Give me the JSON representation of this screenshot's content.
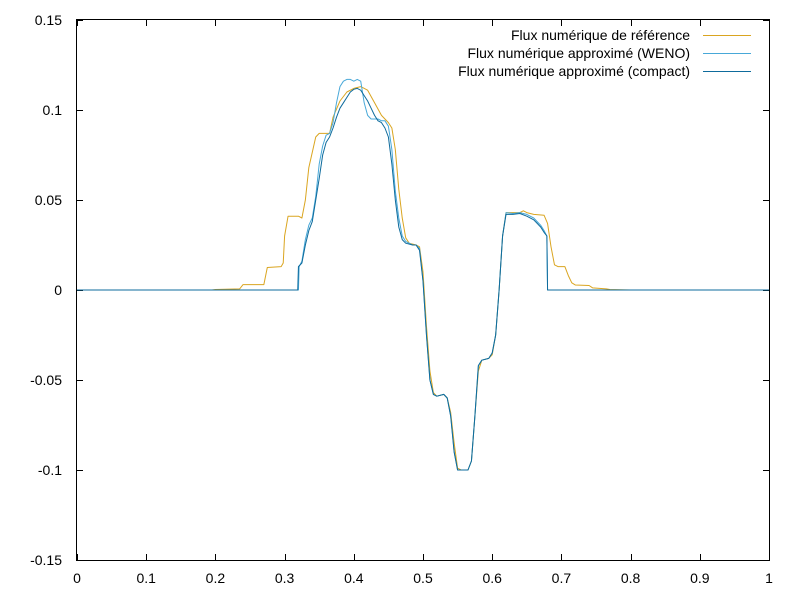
{
  "chart_data": {
    "type": "line",
    "title": "",
    "xlabel": "",
    "ylabel": "",
    "xlim": [
      0,
      1
    ],
    "ylim": [
      -0.15,
      0.15
    ],
    "x_ticks": [
      0,
      0.1,
      0.2,
      0.3,
      0.4,
      0.5,
      0.6,
      0.7,
      0.8,
      0.9,
      1
    ],
    "x_tick_labels": [
      "0",
      "0.1",
      "0.2",
      "0.3",
      "0.4",
      "0.5",
      "0.6",
      "0.7",
      "0.8",
      "0.9",
      "1"
    ],
    "y_ticks": [
      -0.15,
      -0.1,
      -0.05,
      0,
      0.05,
      0.1,
      0.15
    ],
    "y_tick_labels": [
      "-0.15",
      "-0.1",
      "-0.05",
      "0",
      "0.05",
      "0.1",
      "0.15"
    ],
    "grid": false,
    "legend_position": "top-right",
    "series": [
      {
        "name": "Flux numérique de référence",
        "color": "#daa520",
        "points": [
          [
            0,
            0
          ],
          [
            0.195,
            0
          ],
          [
            0.2,
            0.0003
          ],
          [
            0.235,
            0.0006
          ],
          [
            0.24,
            0.003
          ],
          [
            0.27,
            0.003
          ],
          [
            0.275,
            0.0125
          ],
          [
            0.295,
            0.013
          ],
          [
            0.298,
            0.015
          ],
          [
            0.3,
            0.03
          ],
          [
            0.305,
            0.041
          ],
          [
            0.32,
            0.041
          ],
          [
            0.325,
            0.04
          ],
          [
            0.33,
            0.05
          ],
          [
            0.335,
            0.068
          ],
          [
            0.345,
            0.085
          ],
          [
            0.35,
            0.087
          ],
          [
            0.365,
            0.087
          ],
          [
            0.37,
            0.096
          ],
          [
            0.38,
            0.105
          ],
          [
            0.39,
            0.11
          ],
          [
            0.4,
            0.112
          ],
          [
            0.41,
            0.113
          ],
          [
            0.42,
            0.111
          ],
          [
            0.43,
            0.104
          ],
          [
            0.44,
            0.097
          ],
          [
            0.45,
            0.093
          ],
          [
            0.455,
            0.09
          ],
          [
            0.46,
            0.078
          ],
          [
            0.465,
            0.056
          ],
          [
            0.47,
            0.04
          ],
          [
            0.475,
            0.029
          ],
          [
            0.48,
            0.026
          ],
          [
            0.49,
            0.025
          ],
          [
            0.495,
            0.024
          ],
          [
            0.5,
            0.01
          ],
          [
            0.505,
            -0.02
          ],
          [
            0.51,
            -0.045
          ],
          [
            0.515,
            -0.057
          ],
          [
            0.52,
            -0.059
          ],
          [
            0.53,
            -0.058
          ],
          [
            0.535,
            -0.06
          ],
          [
            0.54,
            -0.068
          ],
          [
            0.545,
            -0.085
          ],
          [
            0.55,
            -0.099
          ],
          [
            0.555,
            -0.1
          ],
          [
            0.565,
            -0.1
          ],
          [
            0.57,
            -0.095
          ],
          [
            0.575,
            -0.07
          ],
          [
            0.58,
            -0.045
          ],
          [
            0.585,
            -0.039
          ],
          [
            0.595,
            -0.038
          ],
          [
            0.6,
            -0.036
          ],
          [
            0.605,
            -0.025
          ],
          [
            0.61,
            0
          ],
          [
            0.615,
            0.03
          ],
          [
            0.62,
            0.043
          ],
          [
            0.64,
            0.043
          ],
          [
            0.645,
            0.044
          ],
          [
            0.65,
            0.043
          ],
          [
            0.66,
            0.042
          ],
          [
            0.675,
            0.0415
          ],
          [
            0.68,
            0.037
          ],
          [
            0.685,
            0.024
          ],
          [
            0.69,
            0.014
          ],
          [
            0.695,
            0.013
          ],
          [
            0.705,
            0.013
          ],
          [
            0.71,
            0.008
          ],
          [
            0.715,
            0.004
          ],
          [
            0.72,
            0.0028
          ],
          [
            0.74,
            0.0025
          ],
          [
            0.745,
            0.0012
          ],
          [
            0.765,
            0.0006
          ],
          [
            0.77,
            0.0003
          ],
          [
            0.8,
            0
          ],
          [
            1,
            0
          ]
        ]
      },
      {
        "name": "Flux numérique approximé (WENO)",
        "color": "#48a8d8",
        "points": [
          [
            0,
            0
          ],
          [
            0.315,
            0
          ],
          [
            0.32,
            0
          ],
          [
            0.321,
            0.013
          ],
          [
            0.325,
            0.016
          ],
          [
            0.33,
            0.028
          ],
          [
            0.335,
            0.036
          ],
          [
            0.34,
            0.04
          ],
          [
            0.345,
            0.052
          ],
          [
            0.35,
            0.07
          ],
          [
            0.355,
            0.08
          ],
          [
            0.36,
            0.086
          ],
          [
            0.365,
            0.087
          ],
          [
            0.37,
            0.093
          ],
          [
            0.375,
            0.104
          ],
          [
            0.38,
            0.113
          ],
          [
            0.385,
            0.116
          ],
          [
            0.39,
            0.117
          ],
          [
            0.395,
            0.117
          ],
          [
            0.4,
            0.116
          ],
          [
            0.405,
            0.117
          ],
          [
            0.41,
            0.116
          ],
          [
            0.415,
            0.104
          ],
          [
            0.42,
            0.097
          ],
          [
            0.425,
            0.095
          ],
          [
            0.435,
            0.095
          ],
          [
            0.44,
            0.094
          ],
          [
            0.445,
            0.094
          ],
          [
            0.45,
            0.091
          ],
          [
            0.455,
            0.078
          ],
          [
            0.46,
            0.055
          ],
          [
            0.465,
            0.04
          ],
          [
            0.47,
            0.03
          ],
          [
            0.475,
            0.027
          ],
          [
            0.485,
            0.025
          ],
          [
            0.49,
            0.025
          ],
          [
            0.495,
            0.023
          ],
          [
            0.5,
            0.005
          ],
          [
            0.505,
            -0.025
          ],
          [
            0.51,
            -0.05
          ],
          [
            0.515,
            -0.058
          ],
          [
            0.52,
            -0.059
          ],
          [
            0.53,
            -0.058
          ],
          [
            0.535,
            -0.06
          ],
          [
            0.54,
            -0.07
          ],
          [
            0.545,
            -0.09
          ],
          [
            0.55,
            -0.1
          ],
          [
            0.56,
            -0.1
          ],
          [
            0.565,
            -0.1
          ],
          [
            0.57,
            -0.095
          ],
          [
            0.575,
            -0.07
          ],
          [
            0.58,
            -0.042
          ],
          [
            0.585,
            -0.039
          ],
          [
            0.595,
            -0.038
          ],
          [
            0.6,
            -0.035
          ],
          [
            0.605,
            -0.025
          ],
          [
            0.61,
            0
          ],
          [
            0.615,
            0.03
          ],
          [
            0.62,
            0.043
          ],
          [
            0.63,
            0.0425
          ],
          [
            0.64,
            0.043
          ],
          [
            0.65,
            0.042
          ],
          [
            0.66,
            0.04
          ],
          [
            0.665,
            0.038
          ],
          [
            0.67,
            0.036
          ],
          [
            0.675,
            0.033
          ],
          [
            0.679,
            0.03
          ],
          [
            0.68,
            0
          ],
          [
            1,
            0
          ]
        ]
      },
      {
        "name": "Flux numérique approximé (compact)",
        "color": "#0e6b9c",
        "points": [
          [
            0,
            0
          ],
          [
            0.318,
            0
          ],
          [
            0.319,
            0
          ],
          [
            0.32,
            0.013
          ],
          [
            0.325,
            0.015
          ],
          [
            0.33,
            0.025
          ],
          [
            0.335,
            0.033
          ],
          [
            0.34,
            0.038
          ],
          [
            0.345,
            0.05
          ],
          [
            0.35,
            0.062
          ],
          [
            0.355,
            0.075
          ],
          [
            0.36,
            0.082
          ],
          [
            0.365,
            0.085
          ],
          [
            0.37,
            0.09
          ],
          [
            0.375,
            0.096
          ],
          [
            0.38,
            0.101
          ],
          [
            0.385,
            0.104
          ],
          [
            0.39,
            0.107
          ],
          [
            0.395,
            0.11
          ],
          [
            0.4,
            0.1115
          ],
          [
            0.405,
            0.112
          ],
          [
            0.41,
            0.111
          ],
          [
            0.415,
            0.108
          ],
          [
            0.42,
            0.105
          ],
          [
            0.425,
            0.101
          ],
          [
            0.43,
            0.097
          ],
          [
            0.435,
            0.094
          ],
          [
            0.44,
            0.093
          ],
          [
            0.445,
            0.09
          ],
          [
            0.45,
            0.085
          ],
          [
            0.455,
            0.07
          ],
          [
            0.46,
            0.05
          ],
          [
            0.465,
            0.035
          ],
          [
            0.47,
            0.028
          ],
          [
            0.475,
            0.026
          ],
          [
            0.485,
            0.025
          ],
          [
            0.49,
            0.025
          ],
          [
            0.495,
            0.022
          ],
          [
            0.5,
            0.005
          ],
          [
            0.505,
            -0.025
          ],
          [
            0.51,
            -0.05
          ],
          [
            0.515,
            -0.058
          ],
          [
            0.52,
            -0.059
          ],
          [
            0.53,
            -0.058
          ],
          [
            0.535,
            -0.06
          ],
          [
            0.54,
            -0.07
          ],
          [
            0.545,
            -0.09
          ],
          [
            0.55,
            -0.1
          ],
          [
            0.56,
            -0.1
          ],
          [
            0.565,
            -0.1
          ],
          [
            0.57,
            -0.095
          ],
          [
            0.575,
            -0.07
          ],
          [
            0.58,
            -0.042
          ],
          [
            0.585,
            -0.039
          ],
          [
            0.595,
            -0.038
          ],
          [
            0.6,
            -0.035
          ],
          [
            0.605,
            -0.025
          ],
          [
            0.61,
            0
          ],
          [
            0.615,
            0.03
          ],
          [
            0.62,
            0.042
          ],
          [
            0.63,
            0.042
          ],
          [
            0.64,
            0.0425
          ],
          [
            0.65,
            0.041
          ],
          [
            0.66,
            0.039
          ],
          [
            0.665,
            0.037
          ],
          [
            0.67,
            0.035
          ],
          [
            0.675,
            0.032
          ],
          [
            0.679,
            0.03
          ],
          [
            0.68,
            0
          ],
          [
            1,
            0
          ]
        ]
      }
    ]
  }
}
